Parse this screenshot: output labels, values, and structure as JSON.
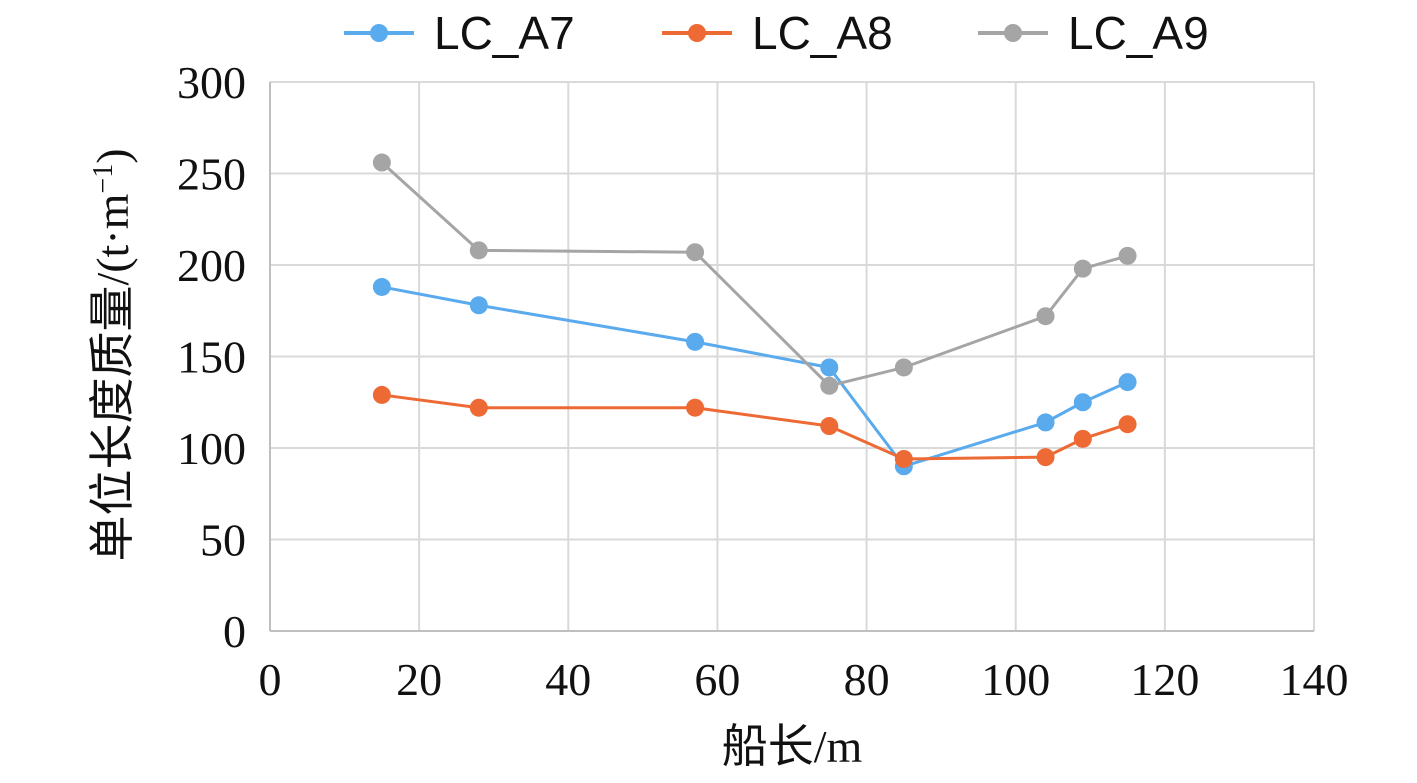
{
  "chart_data": {
    "type": "line",
    "title": "",
    "xlabel": "船长/m",
    "ylabel": "单位长度质量/(t·m",
    "ylabel_unit_exponent": "−1",
    "ylabel_suffix": ")",
    "xlim": [
      0,
      140
    ],
    "ylim": [
      0,
      300
    ],
    "xticks": [
      0,
      20,
      40,
      60,
      80,
      100,
      120,
      140
    ],
    "yticks": [
      0,
      50,
      100,
      150,
      200,
      250,
      300
    ],
    "grid": true,
    "legend_position": "top",
    "series": [
      {
        "name": "LC_A7",
        "color": "#5aaaee",
        "x": [
          15,
          28,
          57,
          75,
          85,
          104,
          109,
          115
        ],
        "y": [
          188,
          178,
          158,
          144,
          90,
          114,
          125,
          136
        ]
      },
      {
        "name": "LC_A8",
        "color": "#ed6a35",
        "x": [
          15,
          28,
          57,
          75,
          85,
          104,
          109,
          115
        ],
        "y": [
          129,
          122,
          122,
          112,
          94,
          95,
          105,
          113
        ]
      },
      {
        "name": "LC_A9",
        "color": "#a5a5a5",
        "x": [
          15,
          28,
          57,
          75,
          85,
          104,
          109,
          115
        ],
        "y": [
          256,
          208,
          207,
          134,
          144,
          172,
          198,
          205
        ]
      }
    ]
  }
}
